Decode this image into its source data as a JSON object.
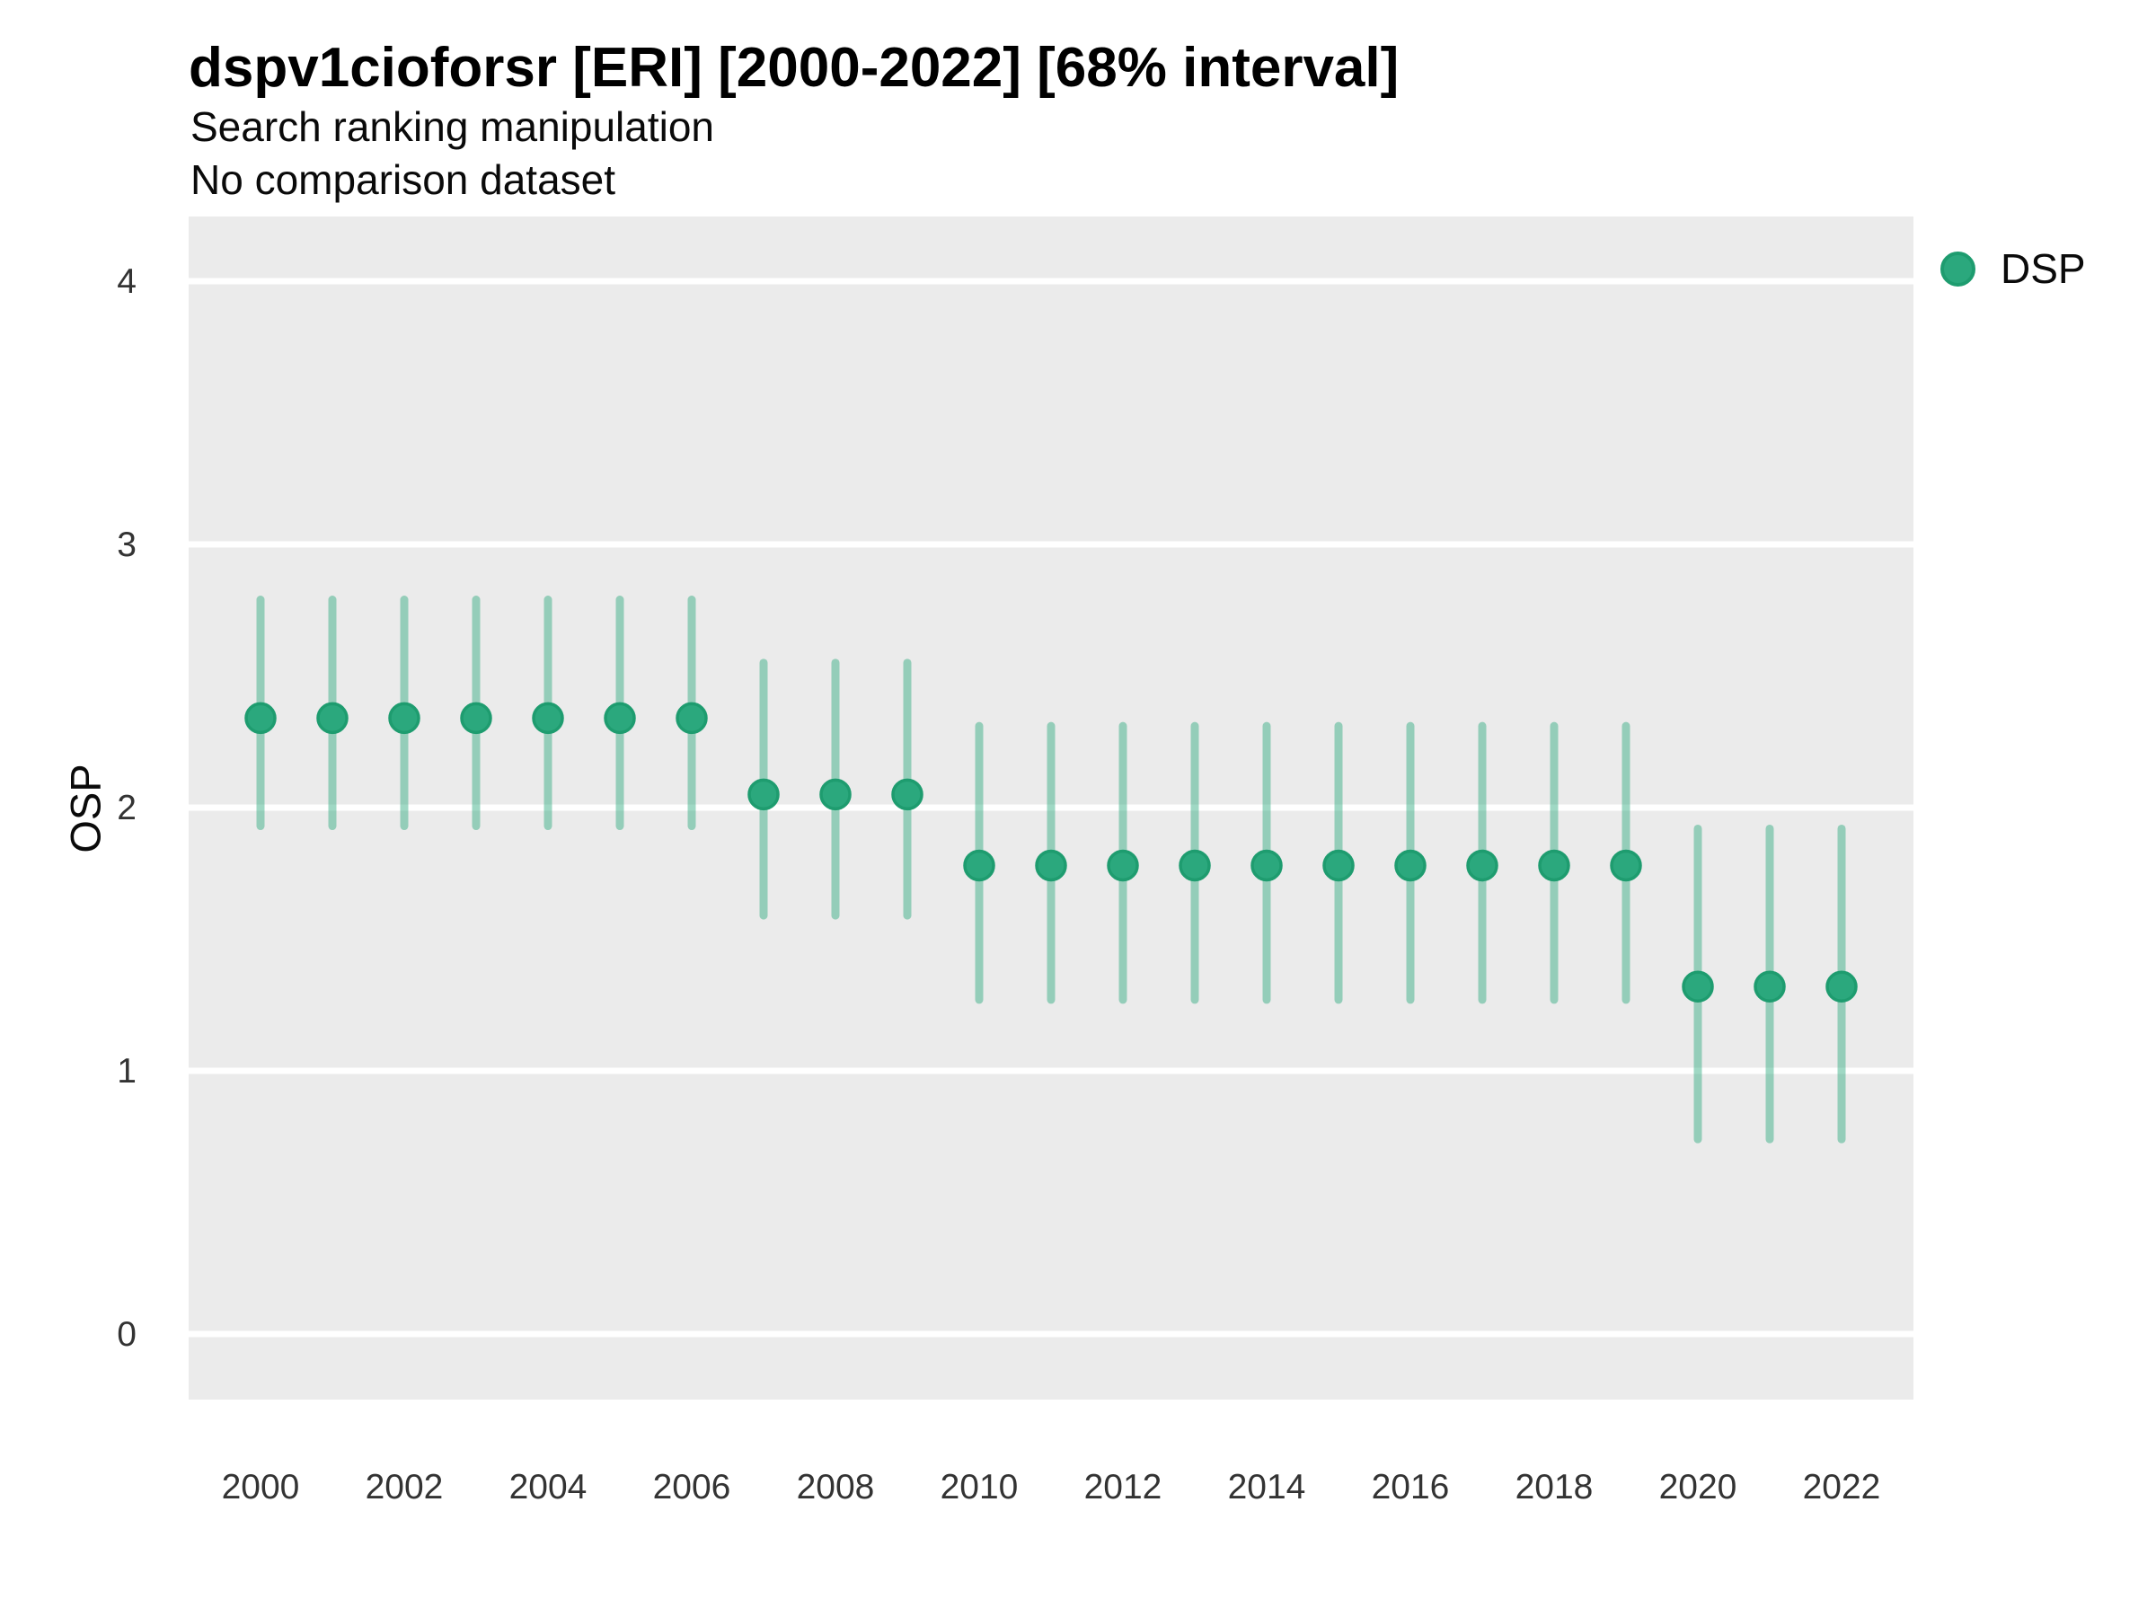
{
  "header": {
    "title": "dspv1cioforsr [ERI] [2000-2022] [68% interval]",
    "subtitle1": "Search ranking manipulation",
    "subtitle2": "No comparison dataset"
  },
  "legend": {
    "label": "DSP"
  },
  "colors": {
    "point_fill": "#2BA87D",
    "point_stroke": "#1E9C6F",
    "errorbar": "#2BA87D",
    "errorbar_opacity": 0.45,
    "panel_bg": "#EBEBEB",
    "gridline": "#FFFFFF",
    "tick_text": "#333333",
    "title_text": "#000000"
  },
  "chart_data": {
    "type": "scatter",
    "title": "dspv1cioforsr [ERI] [2000-2022] [68% interval]",
    "subtitle": [
      "Search ranking manipulation",
      "No comparison dataset"
    ],
    "xlabel": "",
    "ylabel": "OSP",
    "interval": "68% interval",
    "ylim": [
      -0.25,
      4.25
    ],
    "yticks": [
      0,
      1,
      2,
      3,
      4
    ],
    "xtick_labels": [
      "2000",
      "2002",
      "2004",
      "2006",
      "2008",
      "2010",
      "2012",
      "2014",
      "2016",
      "2018",
      "2020",
      "2022"
    ],
    "grid": "major-horizontal-only",
    "legend_position": "right-top",
    "series": [
      {
        "name": "DSP",
        "x": [
          2000,
          2001,
          2002,
          2003,
          2004,
          2005,
          2006,
          2007,
          2008,
          2009,
          2010,
          2011,
          2012,
          2013,
          2014,
          2015,
          2016,
          2017,
          2018,
          2019,
          2020,
          2021,
          2022
        ],
        "estimate": [
          2.34,
          2.34,
          2.34,
          2.34,
          2.34,
          2.34,
          2.34,
          2.05,
          2.05,
          2.05,
          1.78,
          1.78,
          1.78,
          1.78,
          1.78,
          1.78,
          1.78,
          1.78,
          1.78,
          1.78,
          1.32,
          1.32,
          1.32
        ],
        "lower": [
          1.93,
          1.93,
          1.93,
          1.93,
          1.93,
          1.93,
          1.93,
          1.59,
          1.59,
          1.59,
          1.27,
          1.27,
          1.27,
          1.27,
          1.27,
          1.27,
          1.27,
          1.27,
          1.27,
          1.27,
          0.74,
          0.74,
          0.74
        ],
        "upper": [
          2.79,
          2.79,
          2.79,
          2.79,
          2.79,
          2.79,
          2.79,
          2.55,
          2.55,
          2.55,
          2.31,
          2.31,
          2.31,
          2.31,
          2.31,
          2.31,
          2.31,
          2.31,
          2.31,
          2.31,
          1.92,
          1.92,
          1.92
        ]
      }
    ]
  }
}
